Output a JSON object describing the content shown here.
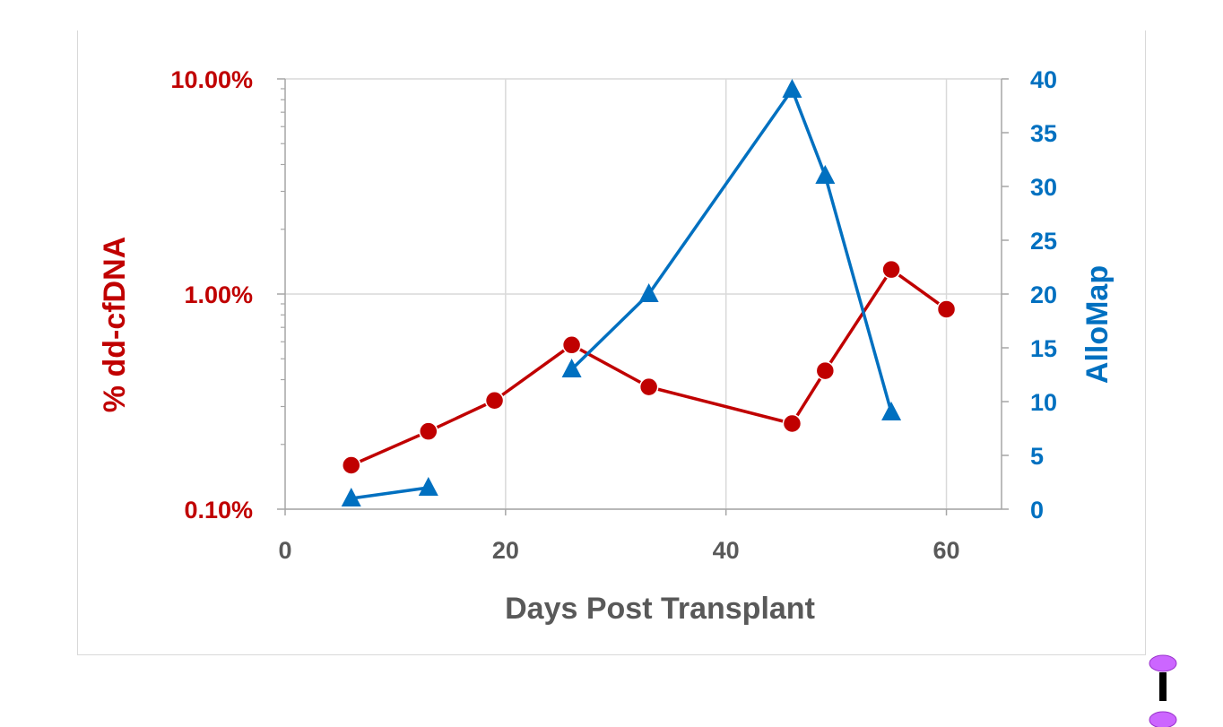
{
  "chart_data": {
    "type": "line",
    "title": "",
    "xlabel": "Days Post Transplant",
    "ylabel_left": "% dd-cfDNA",
    "ylabel_right": "AlloMap",
    "xlim": [
      0,
      65
    ],
    "x_ticks": [
      "0",
      "20",
      "40",
      "60"
    ],
    "y_left_scale": "log",
    "y_left_lim": [
      0.1,
      10
    ],
    "y_left_ticks": [
      "0.10%",
      "1.00%",
      "10.00%"
    ],
    "y_right_lim": [
      0,
      40
    ],
    "y_right_ticks": [
      "0",
      "5",
      "10",
      "15",
      "20",
      "25",
      "30",
      "35",
      "40"
    ],
    "grid": true,
    "series": [
      {
        "name": "% dd-cfDNA",
        "axis": "left",
        "marker": "circle",
        "color": "#c00000",
        "x": [
          6,
          13,
          19,
          26,
          33,
          46,
          49,
          55,
          60
        ],
        "y": [
          0.16,
          0.23,
          0.32,
          0.58,
          0.37,
          0.25,
          0.44,
          1.3,
          0.85
        ]
      },
      {
        "name": "AlloMap",
        "axis": "right",
        "marker": "triangle",
        "color": "#0070c0",
        "segments": [
          {
            "x": [
              6,
              13
            ],
            "y": [
              1,
              2
            ]
          },
          {
            "x": [
              26,
              33,
              46,
              49,
              55
            ],
            "y": [
              13,
              20,
              39,
              31,
              9
            ]
          }
        ]
      }
    ]
  }
}
